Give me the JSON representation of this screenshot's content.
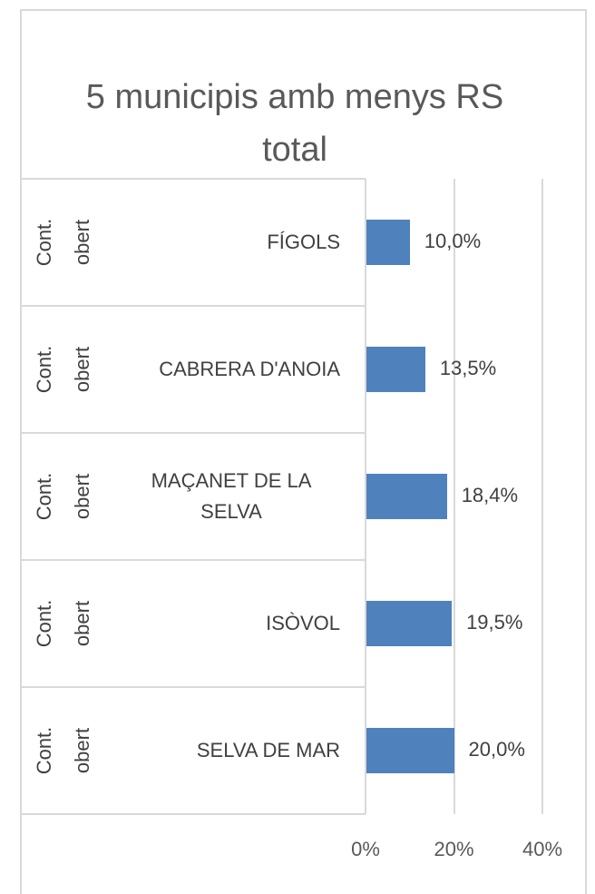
{
  "chart_data": {
    "type": "bar",
    "orientation": "horizontal",
    "title": "5 municipis amb menys RS total",
    "groups": [
      "Cont. obert",
      "Cont. obert",
      "Cont. obert",
      "Cont. obert",
      "Cont. obert"
    ],
    "categories": [
      "FÍGOLS",
      "CABRERA D'ANOIA",
      "MAÇANET DE LA SELVA",
      "ISÒVOL",
      "SELVA DE MAR"
    ],
    "values": [
      10.0,
      13.5,
      18.4,
      19.5,
      20.0
    ],
    "value_labels": [
      "10,0%",
      "13,5%",
      "18,4%",
      "19,5%",
      "20,0%"
    ],
    "color": "#4f81bd",
    "xlim": [
      0,
      40
    ],
    "xticks": [
      {
        "value": 0,
        "label": "0%"
      },
      {
        "value": 20,
        "label": "20%"
      },
      {
        "value": 40,
        "label": "40%"
      }
    ],
    "grid": true
  }
}
